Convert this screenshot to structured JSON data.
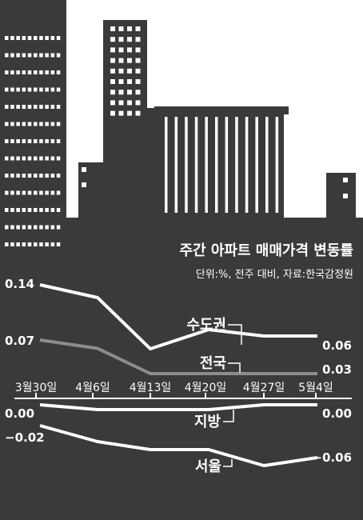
{
  "chart_data": {
    "type": "line",
    "title": "주간 아파트 매매가격 변동률",
    "subtitle": "단위:%, 전주 대비, 자료:한국감정원",
    "categories": [
      "3월30일",
      "4월6일",
      "4월13일",
      "4월20일",
      "4월27일",
      "5월4일"
    ],
    "series": [
      {
        "name": "수도권",
        "values": [
          0.14,
          0.12,
          0.04,
          0.07,
          0.06,
          0.06
        ],
        "color": "#ffffff",
        "start_label": "0.14",
        "end_label": "0.06"
      },
      {
        "name": "전국",
        "values": [
          0.07,
          0.06,
          0.03,
          0.03,
          0.03,
          0.03
        ],
        "color": "#8c8c8c",
        "start_label": "0.07",
        "end_label": "0.03"
      },
      {
        "name": "지방",
        "values": [
          0.0,
          -0.01,
          -0.01,
          -0.01,
          0.0,
          0.0
        ],
        "color": "#ffffff",
        "start_label": "0.00",
        "end_label": "0.00"
      },
      {
        "name": "서울",
        "values": [
          -0.02,
          -0.04,
          -0.05,
          -0.05,
          -0.07,
          -0.06
        ],
        "color": "#ffffff",
        "start_label": "−0.02",
        "end_label": "−0.06"
      }
    ],
    "xlabel": "",
    "ylabel": "",
    "ylim": [
      -0.07,
      0.14
    ],
    "grid": false,
    "legend": "inline",
    "colors": {
      "background": "#ffffff",
      "panel": "#3a3a3a",
      "line": "#ffffff",
      "national": "#8c8c8c"
    }
  }
}
